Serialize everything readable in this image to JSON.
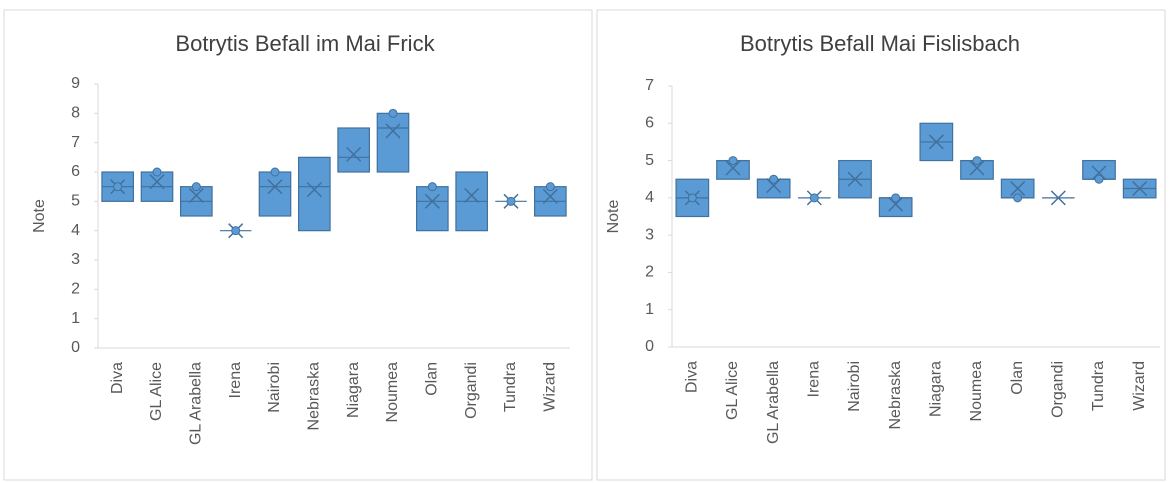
{
  "chart_data": [
    {
      "type": "box",
      "title": "Botrytis Befall im Mai Frick",
      "y_label": "Note",
      "categories": [
        "Diva",
        "GL Alice",
        "GL Arabella",
        "Irena",
        "Nairobi",
        "Nebraska",
        "Niagara",
        "Noumea",
        "Olan",
        "Organdi",
        "Tundra",
        "Wizard"
      ],
      "q1": [
        5,
        5,
        4.5,
        4,
        4.5,
        4,
        6,
        6,
        4,
        4,
        5,
        4.5
      ],
      "q3": [
        6,
        6,
        5.5,
        4,
        6,
        6.5,
        7.5,
        8,
        5.5,
        6,
        5,
        5.5
      ],
      "median": [
        5.5,
        5.5,
        5,
        4,
        5.5,
        5.5,
        6.5,
        7.5,
        5,
        5,
        5,
        5
      ],
      "mean": [
        5.5,
        5.67,
        5.2,
        4,
        5.5,
        5.4,
        6.6,
        7.4,
        5,
        5.2,
        5,
        5.17
      ],
      "points": [
        5.5,
        6,
        5.5,
        4,
        6,
        null,
        null,
        8,
        5.5,
        null,
        5,
        5.5
      ],
      "color": "#5b9bd5",
      "ylim": [
        0,
        9
      ],
      "yticks": [
        0,
        1,
        2,
        3,
        4,
        5,
        6,
        7,
        8,
        9
      ]
    },
    {
      "type": "box",
      "title": "Botrytis Befall Mai Fislisbach",
      "y_label": "Note",
      "categories": [
        "Diva",
        "GL Alice",
        "GL Arabella",
        "Irena",
        "Nairobi",
        "Nebraska",
        "Niagara",
        "Noumea",
        "Olan",
        "Organdi",
        "Tundra",
        "Wizard"
      ],
      "q1": [
        3.5,
        4.5,
        4,
        4,
        4,
        3.5,
        5,
        4.5,
        4,
        4,
        4.5,
        4
      ],
      "q3": [
        4.5,
        5,
        4.5,
        4,
        5,
        4,
        6,
        5,
        4.5,
        4,
        5,
        4.5
      ],
      "median": [
        4,
        5,
        4.5,
        4,
        4.5,
        4,
        5.5,
        5,
        4,
        4,
        4.5,
        4.25
      ],
      "mean": [
        4,
        4.8,
        4.33,
        4,
        4.5,
        3.83,
        5.5,
        4.8,
        4.25,
        4,
        4.67,
        4.25
      ],
      "points": [
        4,
        5,
        4.5,
        4,
        null,
        4,
        null,
        5,
        4,
        null,
        4.5,
        null
      ],
      "color": "#5b9bd5",
      "ylim": [
        0,
        7
      ],
      "yticks": [
        0,
        1,
        2,
        3,
        4,
        5,
        6,
        7
      ]
    }
  ]
}
